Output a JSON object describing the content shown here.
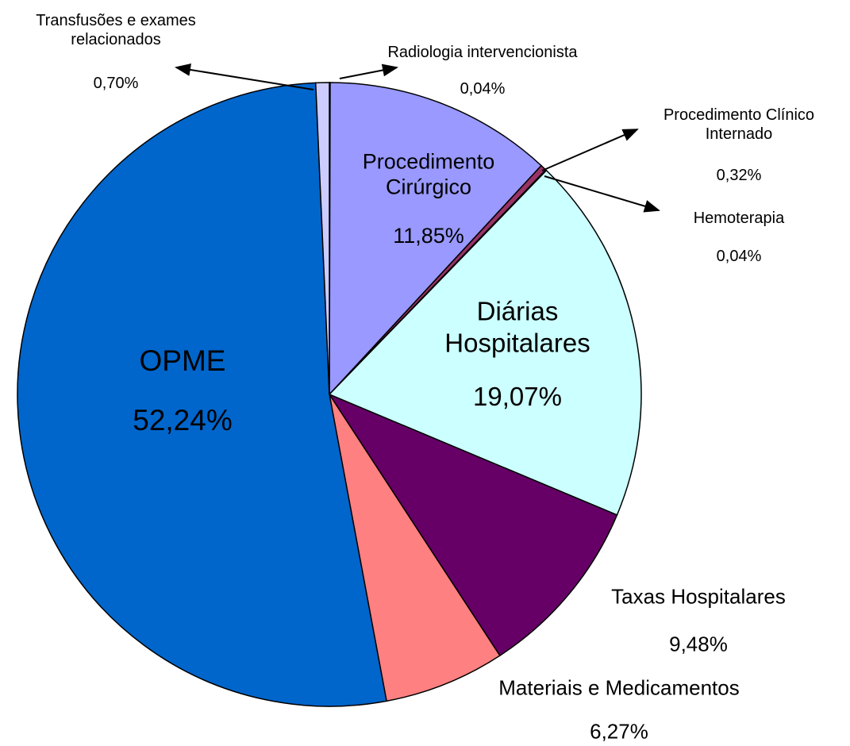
{
  "chart_data": {
    "type": "pie",
    "categories": [
      "Radiologia intervencionista",
      "Procedimento Cirúrgico",
      "Procedimento Clínico Internado",
      "Hemoterapia",
      "Diárias Hospitalares",
      "Taxas Hospitalares",
      "Materiais e Medicamentos",
      "OPME",
      "Transfusões e exames relacionados"
    ],
    "values": [
      0.04,
      11.85,
      0.32,
      0.04,
      19.07,
      9.48,
      6.27,
      52.24,
      0.7
    ],
    "value_labels": [
      "0,04%",
      "11,85%",
      "0,32%",
      "0,04%",
      "19,07%",
      "9,48%",
      "6,27%",
      "52,24%",
      "0,70%"
    ],
    "colors": [
      "#ffffff",
      "#9999ff",
      "#993366",
      "#ffffff",
      "#ccffff",
      "#660066",
      "#ff8080",
      "#0066cc",
      "#ccccff"
    ]
  }
}
